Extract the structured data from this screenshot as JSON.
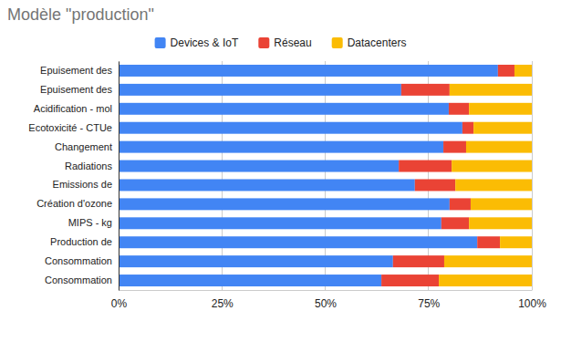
{
  "chart_data": {
    "type": "bar",
    "title": "Modèle \"production\"",
    "orientation": "horizontal",
    "stacked": true,
    "grid": true,
    "legend": "top",
    "categories": [
      "Epuisement des",
      "Epuisement des",
      "Acidification - mol",
      "Ecotoxicité - CTUe",
      "Changement",
      "Radiations",
      "Emissions de",
      "Création d'ozone",
      "MIPS - kg",
      "Production de",
      "Consommation",
      "Consommation"
    ],
    "series": [
      {
        "name": "Devices & IoT",
        "color": "#4285f4",
        "values": [
          91.8,
          68.4,
          79.9,
          83.2,
          78.6,
          67.8,
          71.7,
          80.1,
          78.1,
          86.8,
          66.4,
          63.6
        ]
      },
      {
        "name": "Réseau",
        "color": "#ea4335",
        "values": [
          4.0,
          11.7,
          4.9,
          2.7,
          5.5,
          12.8,
          9.8,
          5.1,
          6.7,
          5.5,
          12.4,
          13.9
        ]
      },
      {
        "name": "Datacenters",
        "color": "#fbbc04",
        "values": [
          4.2,
          19.9,
          15.2,
          14.1,
          15.9,
          19.4,
          18.5,
          14.8,
          15.2,
          7.7,
          21.2,
          22.5
        ]
      }
    ],
    "xlim": [
      0,
      100
    ],
    "xticks": [
      {
        "value": 0,
        "label": "0%"
      },
      {
        "value": 25,
        "label": "25%"
      },
      {
        "value": 50,
        "label": "50%"
      },
      {
        "value": 75,
        "label": "75%"
      },
      {
        "value": 100,
        "label": "100%"
      }
    ]
  }
}
